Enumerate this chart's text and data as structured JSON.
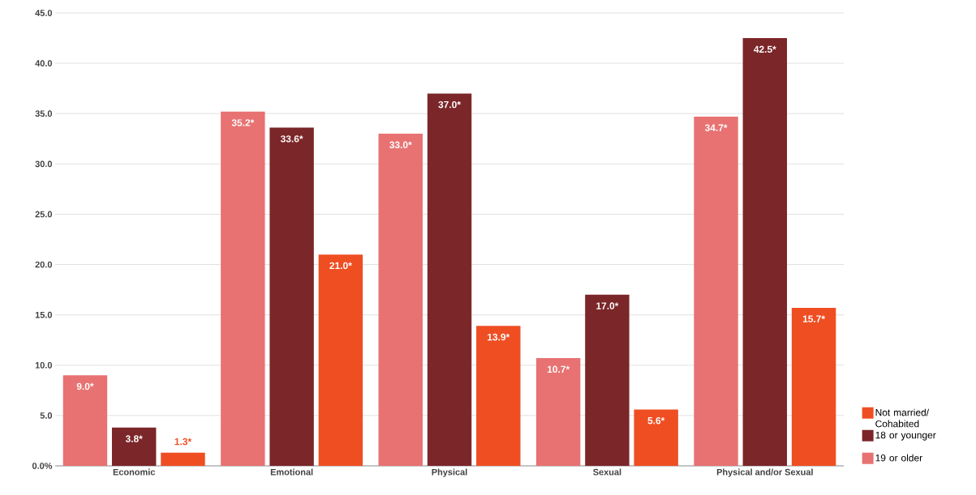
{
  "chart_data": {
    "type": "bar",
    "categories": [
      "Economic",
      "Emotional",
      "Physical",
      "Sexual",
      "Physical and/or Sexual"
    ],
    "series": [
      {
        "name": "19 or older",
        "color": "#e87272",
        "values": [
          9.0,
          35.2,
          33.0,
          10.7,
          34.7
        ],
        "value_labels": [
          "9.0*",
          "35.2*",
          "33.0*",
          "10.7*",
          "34.7*"
        ]
      },
      {
        "name": "18 or younger",
        "color": "#7b2629",
        "values": [
          3.8,
          33.6,
          37.0,
          17.0,
          42.5
        ],
        "value_labels": [
          "3.8*",
          "33.6*",
          "37.0*",
          "17.0*",
          "42.5*"
        ]
      },
      {
        "name": "Not married/ Cohabited",
        "color": "#ef4e23",
        "values": [
          1.3,
          21.0,
          13.9,
          5.6,
          15.7
        ],
        "value_labels": [
          "1.3*",
          "21.0*",
          "13.9*",
          "5.6*",
          "15.7*"
        ]
      }
    ],
    "ylim": [
      0,
      45
    ],
    "yticks": [
      {
        "value": 0,
        "label": "0.0%"
      },
      {
        "value": 5,
        "label": "5.0"
      },
      {
        "value": 10,
        "label": "10.0"
      },
      {
        "value": 15,
        "label": "15.0"
      },
      {
        "value": 20,
        "label": "20.0"
      },
      {
        "value": 25,
        "label": "25.0"
      },
      {
        "value": 30,
        "label": "30.0"
      },
      {
        "value": 35,
        "label": "35.0"
      },
      {
        "value": 40,
        "label": "40.0"
      },
      {
        "value": 45,
        "label": "45.0"
      }
    ],
    "grid": "y",
    "legend": "right"
  }
}
